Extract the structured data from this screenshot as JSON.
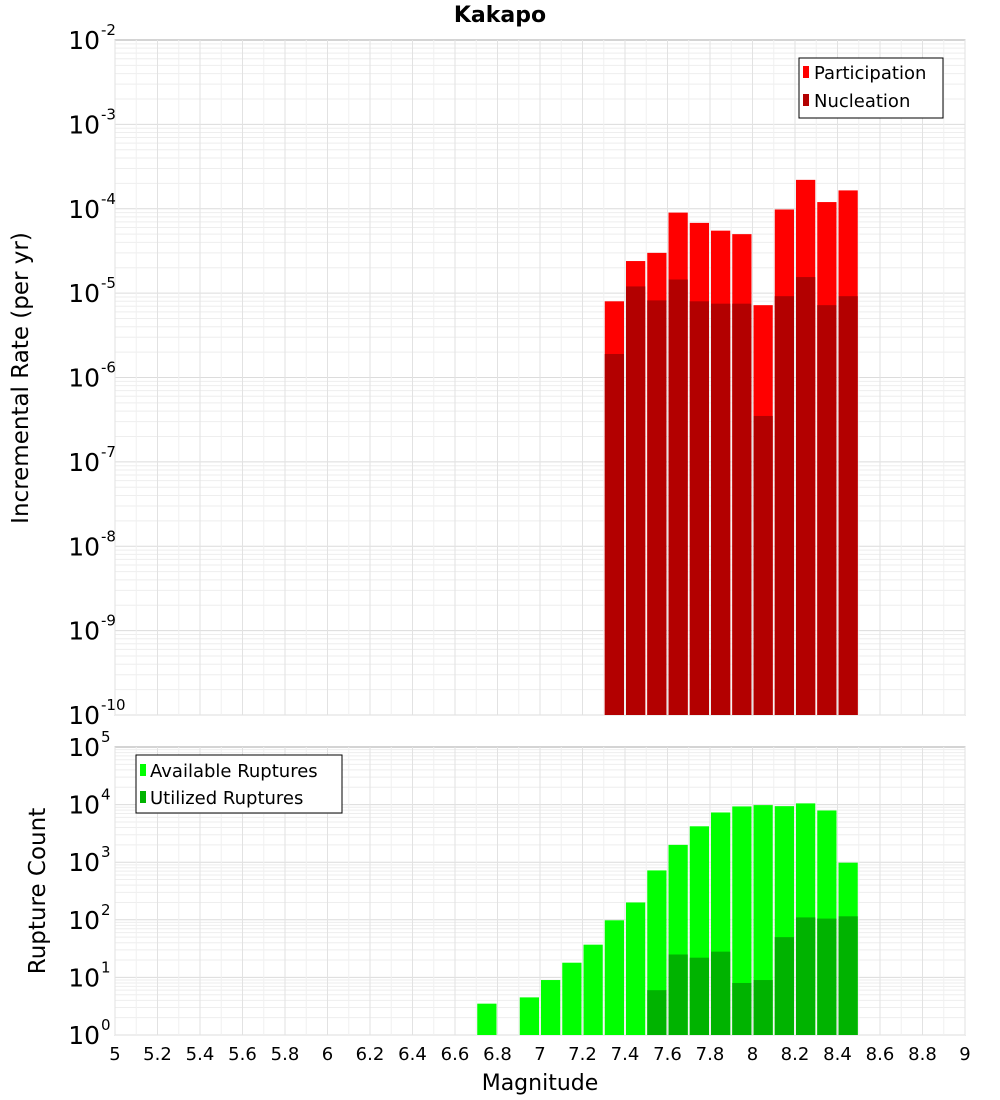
{
  "title": "Kakapo",
  "xlabel": "Magnitude",
  "chart_data": [
    {
      "type": "bar",
      "title": "Kakapo",
      "ylabel": "Incremental Rate (per yr)",
      "yscale": "log",
      "ylim_exp": [
        -10,
        -2
      ],
      "xlim": [
        5,
        9
      ],
      "grid": true,
      "legend_position": "top-right",
      "legend": [
        {
          "label": "Participation",
          "color": "#ff0000"
        },
        {
          "label": "Nucleation",
          "color": "#b30000"
        }
      ],
      "x": [
        7.35,
        7.45,
        7.55,
        7.65,
        7.75,
        7.85,
        7.95,
        8.05,
        8.15,
        8.25,
        8.35,
        8.45
      ],
      "series": [
        {
          "name": "Participation",
          "color": "#ff0000",
          "values": [
            8e-06,
            2.4e-05,
            3e-05,
            9e-05,
            6.8e-05,
            5.5e-05,
            5e-05,
            7.2e-06,
            9.8e-05,
            0.00022,
            0.00012,
            0.000165
          ]
        },
        {
          "name": "Nucleation",
          "color": "#b30000",
          "values": [
            1.9e-06,
            1.2e-05,
            8.2e-06,
            1.45e-05,
            8e-06,
            7.5e-06,
            7.5e-06,
            3.5e-07,
            9.2e-06,
            1.55e-05,
            7.2e-06,
            9.2e-06
          ]
        }
      ]
    },
    {
      "type": "bar",
      "ylabel": "Rupture Count",
      "yscale": "log",
      "ylim_exp": [
        0,
        5
      ],
      "xlim": [
        5,
        9
      ],
      "grid": true,
      "legend_position": "top-left",
      "legend": [
        {
          "label": "Available Ruptures",
          "color": "#00ff00"
        },
        {
          "label": "Utilized Ruptures",
          "color": "#00b300"
        }
      ],
      "x": [
        6.75,
        6.85,
        6.95,
        7.05,
        7.15,
        7.25,
        7.35,
        7.45,
        7.55,
        7.65,
        7.75,
        7.85,
        7.95,
        8.05,
        8.15,
        8.25,
        8.35,
        8.45
      ],
      "series": [
        {
          "name": "Available Ruptures",
          "color": "#00ff00",
          "values": [
            3.5,
            1.0,
            4.5,
            9,
            18,
            37,
            98,
            200,
            720,
            2000,
            4200,
            7300,
            9300,
            9800,
            9400,
            10500,
            7900,
            980
          ]
        },
        {
          "name": "Utilized Ruptures",
          "color": "#00b300",
          "values": [
            0,
            0,
            0,
            1,
            0,
            0,
            1,
            1,
            6,
            25,
            22,
            28,
            8,
            9,
            50,
            110,
            105,
            115
          ]
        }
      ]
    }
  ],
  "x_ticks": [
    "5",
    "5.2",
    "5.4",
    "5.6",
    "5.8",
    "6",
    "6.2",
    "6.4",
    "6.6",
    "6.8",
    "7",
    "7.2",
    "7.4",
    "7.6",
    "7.8",
    "8",
    "8.2",
    "8.4",
    "8.6",
    "8.8",
    "9"
  ]
}
